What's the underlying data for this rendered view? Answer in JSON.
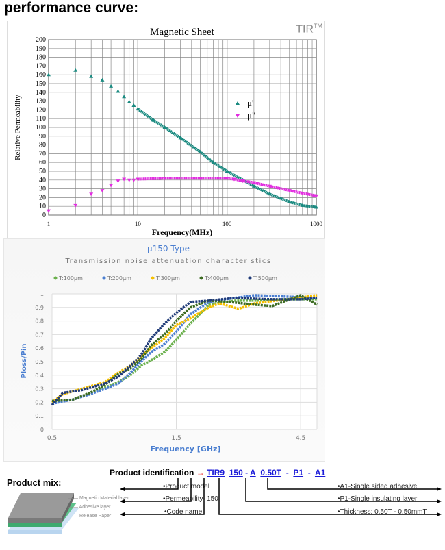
{
  "page_title": "performance curve:",
  "brand": "TIR",
  "brand_sup": "TM",
  "chart_data": [
    {
      "type": "scatter",
      "title": "Magnetic Sheet",
      "xlabel": "Frequency(MHz)",
      "ylabel": "Relative Permeability",
      "xscale": "log",
      "xlim": [
        1,
        1000
      ],
      "ylim": [
        0,
        200
      ],
      "xticks": [
        "1",
        "10",
        "100",
        "1000"
      ],
      "yticks": [
        0,
        10,
        20,
        30,
        40,
        50,
        60,
        70,
        80,
        90,
        100,
        110,
        120,
        130,
        140,
        150,
        160,
        170,
        180,
        190,
        200
      ],
      "grid": true,
      "legend": "center-right",
      "series": [
        {
          "name": "μ'",
          "color": "#1a8a80",
          "marker": "triangle-up",
          "x": [
            1,
            2,
            3,
            4,
            5,
            6,
            7,
            8,
            9,
            10,
            15,
            20,
            30,
            50,
            70,
            100,
            150,
            200,
            300,
            500,
            700,
            1000
          ],
          "y": [
            160,
            165,
            158,
            154,
            147,
            141,
            135,
            129,
            125,
            121,
            108,
            100,
            88,
            72,
            60,
            50,
            40,
            33,
            24,
            15,
            11,
            9
          ]
        },
        {
          "name": "μ\"",
          "color": "#e22ee0",
          "marker": "triangle-down",
          "x": [
            1,
            2,
            3,
            4,
            5,
            6,
            7,
            8,
            9,
            10,
            20,
            50,
            100,
            120,
            150,
            200,
            300,
            500,
            700,
            1000
          ],
          "y": [
            5,
            11,
            24,
            28,
            34,
            39,
            41,
            40,
            40,
            41,
            42,
            42,
            42,
            41,
            39,
            37,
            33,
            28,
            25,
            22
          ]
        }
      ]
    },
    {
      "type": "line",
      "title": "μ150 Type",
      "subtitle": "Transmission noise attenuation characteristics",
      "xlabel": "Frequency [GHz]",
      "ylabel": "Ploss/Pin",
      "xscale": "log",
      "xlim": [
        0.5,
        5.2
      ],
      "ylim": [
        0,
        1
      ],
      "xticks": [
        "0.5",
        "1.5",
        "4.5"
      ],
      "yticks": [
        "0",
        "0.1",
        "0.2",
        "0.3",
        "0.4",
        "0.5",
        "0.6",
        "0.7",
        "0.8",
        "0.9",
        "1"
      ],
      "grid": true,
      "legend": "top",
      "series": [
        {
          "name": "T:100μm",
          "color": "#6ab04c",
          "x": [
            0.5,
            0.6,
            0.7,
            0.8,
            0.9,
            1.0,
            1.1,
            1.2,
            1.35,
            1.5,
            1.7,
            2.0,
            2.5,
            3,
            4,
            5.2
          ],
          "y": [
            0.2,
            0.22,
            0.27,
            0.31,
            0.35,
            0.4,
            0.47,
            0.51,
            0.57,
            0.66,
            0.78,
            0.92,
            0.95,
            0.95,
            0.96,
            0.96
          ]
        },
        {
          "name": "T:200μm",
          "color": "#4a7ed0",
          "x": [
            0.5,
            0.6,
            0.7,
            0.8,
            0.9,
            1.0,
            1.1,
            1.2,
            1.35,
            1.5,
            1.7,
            2.0,
            2.5,
            3,
            4,
            5.2
          ],
          "y": [
            0.19,
            0.22,
            0.26,
            0.3,
            0.34,
            0.42,
            0.5,
            0.57,
            0.63,
            0.72,
            0.85,
            0.94,
            0.97,
            0.99,
            0.98,
            0.97
          ]
        },
        {
          "name": "T:300μm",
          "color": "#f5c000",
          "x": [
            0.5,
            0.55,
            0.65,
            0.8,
            0.9,
            1.0,
            1.1,
            1.2,
            1.35,
            1.5,
            1.7,
            2.0,
            2.2,
            2.6,
            3,
            4,
            5.2
          ],
          "y": [
            0.2,
            0.26,
            0.3,
            0.35,
            0.42,
            0.47,
            0.54,
            0.6,
            0.67,
            0.77,
            0.82,
            0.9,
            0.93,
            0.89,
            0.93,
            0.96,
            0.99
          ]
        },
        {
          "name": "T:400μm",
          "color": "#3d6b22",
          "x": [
            0.5,
            0.6,
            0.7,
            0.8,
            0.9,
            1.0,
            1.1,
            1.2,
            1.35,
            1.5,
            1.7,
            2.0,
            2.4,
            3,
            3.5,
            4.5,
            5.2
          ],
          "y": [
            0.21,
            0.22,
            0.27,
            0.33,
            0.41,
            0.45,
            0.52,
            0.62,
            0.7,
            0.8,
            0.9,
            0.95,
            0.94,
            0.92,
            0.91,
            0.99,
            0.92
          ]
        },
        {
          "name": "T:500μm",
          "color": "#1f3a78",
          "x": [
            0.5,
            0.55,
            0.65,
            0.8,
            0.9,
            1.0,
            1.1,
            1.2,
            1.35,
            1.5,
            1.7,
            2.0,
            2.5,
            3.5,
            4.5,
            5.2
          ],
          "y": [
            0.18,
            0.27,
            0.29,
            0.34,
            0.39,
            0.47,
            0.55,
            0.67,
            0.78,
            0.86,
            0.94,
            0.95,
            0.97,
            0.96,
            0.96,
            0.97
          ]
        }
      ]
    }
  ],
  "product_mix": {
    "title": "Product mix:",
    "layers": [
      "Magnetic Material layer",
      "Adhesive layer",
      "Release Paper"
    ]
  },
  "identification": {
    "label": "Product identification",
    "arrow": "→",
    "codes": [
      "TIR9",
      "150",
      "-",
      "A",
      "0.50T",
      "-",
      "P1",
      "-",
      "A1"
    ],
    "left_notes": [
      "•Product model",
      "•Permeability: 150",
      "•Code name"
    ],
    "right_notes": [
      "•A1-Single sided adhesive",
      "•P1-Single insulating layer",
      "•Thickness: 0.50T - 0.50mmT"
    ]
  }
}
